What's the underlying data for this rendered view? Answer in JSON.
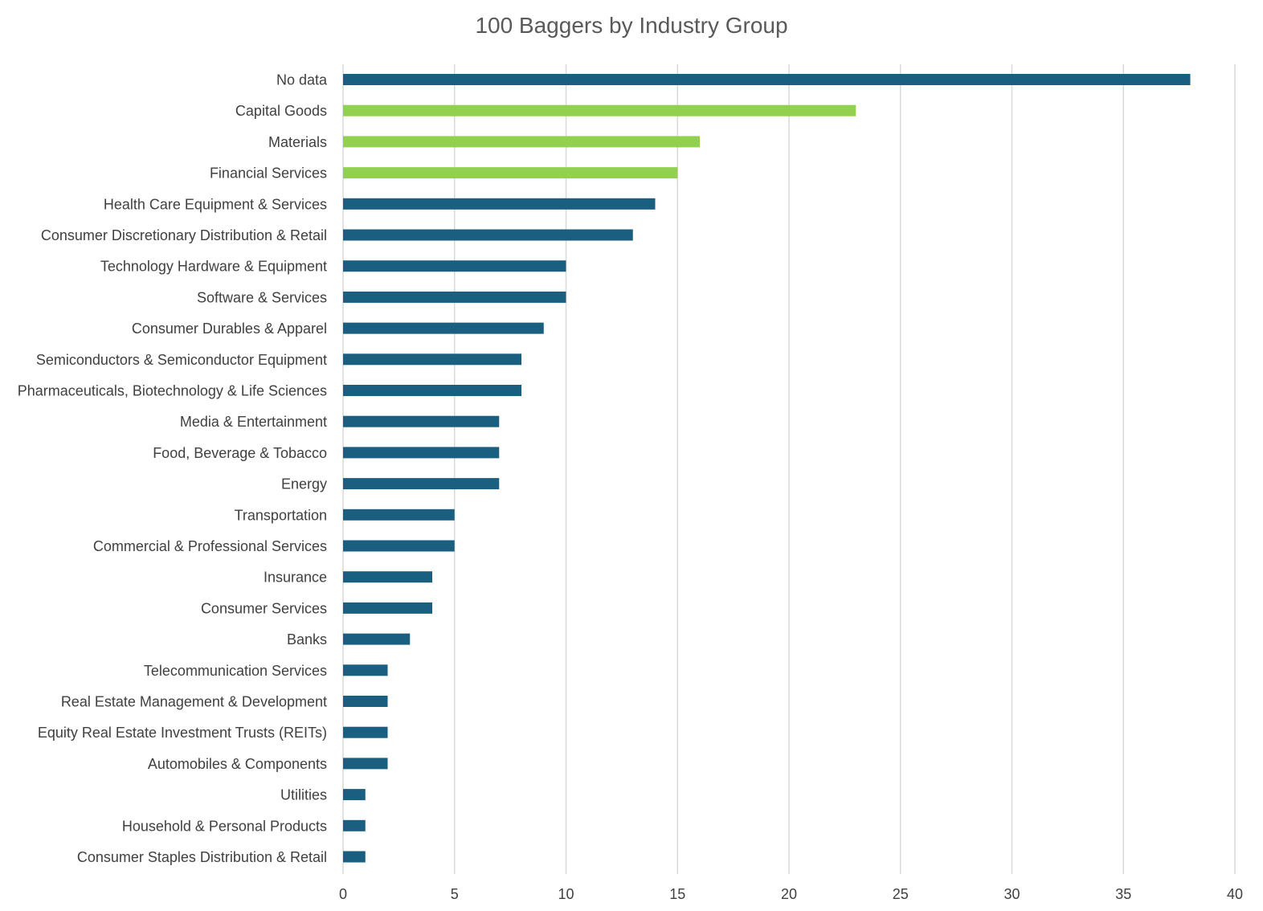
{
  "chart_data": {
    "type": "bar",
    "orientation": "horizontal",
    "title": "100 Baggers by Industry Group",
    "xlabel": "",
    "ylabel": "",
    "xlim": [
      0,
      40
    ],
    "xticks": [
      0,
      5,
      10,
      15,
      20,
      25,
      30,
      35,
      40
    ],
    "grid": "vertical",
    "legend": "none",
    "default_color": "#1a5e80",
    "highlight_color": "#92d050",
    "bars": [
      {
        "label": "No data",
        "value": 38,
        "highlight": false
      },
      {
        "label": "Capital Goods",
        "value": 23,
        "highlight": true
      },
      {
        "label": "Materials",
        "value": 16,
        "highlight": true
      },
      {
        "label": "Financial Services",
        "value": 15,
        "highlight": true
      },
      {
        "label": "Health Care Equipment & Services",
        "value": 14,
        "highlight": false
      },
      {
        "label": "Consumer Discretionary Distribution & Retail",
        "value": 13,
        "highlight": false
      },
      {
        "label": "Technology Hardware & Equipment",
        "value": 10,
        "highlight": false
      },
      {
        "label": "Software & Services",
        "value": 10,
        "highlight": false
      },
      {
        "label": "Consumer Durables & Apparel",
        "value": 9,
        "highlight": false
      },
      {
        "label": "Semiconductors & Semiconductor Equipment",
        "value": 8,
        "highlight": false
      },
      {
        "label": "Pharmaceuticals, Biotechnology & Life Sciences",
        "value": 8,
        "highlight": false
      },
      {
        "label": "Media & Entertainment",
        "value": 7,
        "highlight": false
      },
      {
        "label": "Food, Beverage & Tobacco",
        "value": 7,
        "highlight": false
      },
      {
        "label": "Energy",
        "value": 7,
        "highlight": false
      },
      {
        "label": "Transportation",
        "value": 5,
        "highlight": false
      },
      {
        "label": "Commercial & Professional Services",
        "value": 5,
        "highlight": false
      },
      {
        "label": "Insurance",
        "value": 4,
        "highlight": false
      },
      {
        "label": "Consumer Services",
        "value": 4,
        "highlight": false
      },
      {
        "label": "Banks",
        "value": 3,
        "highlight": false
      },
      {
        "label": "Telecommunication Services",
        "value": 2,
        "highlight": false
      },
      {
        "label": "Real Estate Management & Development",
        "value": 2,
        "highlight": false
      },
      {
        "label": "Equity Real Estate Investment Trusts (REITs)",
        "value": 2,
        "highlight": false
      },
      {
        "label": "Automobiles & Components",
        "value": 2,
        "highlight": false
      },
      {
        "label": "Utilities",
        "value": 1,
        "highlight": false
      },
      {
        "label": "Household & Personal Products",
        "value": 1,
        "highlight": false
      },
      {
        "label": "Consumer Staples Distribution & Retail",
        "value": 1,
        "highlight": false
      }
    ]
  }
}
